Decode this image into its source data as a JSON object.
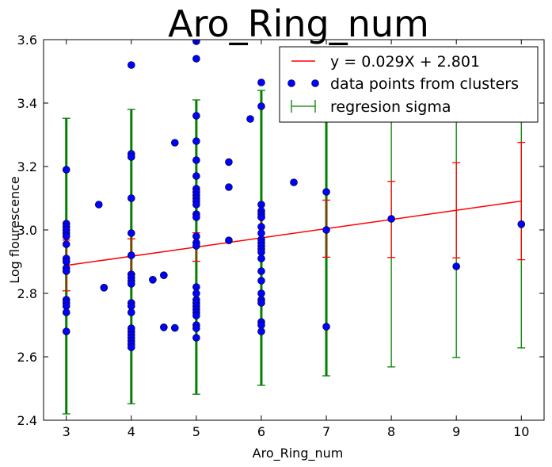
{
  "chart_data": {
    "type": "scatter",
    "title": "Aro_Ring_num",
    "xlabel": "Aro_Ring_num",
    "ylabel": "Log flourescence",
    "xlim": [
      2.65,
      10.35
    ],
    "ylim": [
      2.4,
      3.6
    ],
    "xticks": [
      "3",
      "4",
      "5",
      "6",
      "7",
      "8",
      "9",
      "10"
    ],
    "yticks": [
      "2.4",
      "2.6",
      "2.8",
      "3.0",
      "3.2",
      "3.4",
      "3.6"
    ],
    "grid": false,
    "legend_position": "top-right",
    "colors": {
      "line": "#ff0000",
      "points": "#0000ff",
      "sigma": "#008000"
    },
    "legend": [
      {
        "label": "y = 0.029X + 2.801",
        "kind": "line"
      },
      {
        "label": "data points from clusters",
        "kind": "points"
      },
      {
        "label": "regresion sigma",
        "kind": "errorbar"
      }
    ],
    "regression": {
      "slope": 0.029,
      "intercept": 2.801,
      "x_range": [
        3,
        10
      ]
    },
    "mean_error": [
      {
        "x": 3,
        "y": 2.888,
        "err": 0.08
      },
      {
        "x": 4,
        "y": 2.917,
        "err": 0.055
      },
      {
        "x": 5,
        "y": 2.946,
        "err": 0.045
      },
      {
        "x": 6,
        "y": 2.975,
        "err": 0.065
      },
      {
        "x": 7,
        "y": 3.004,
        "err": 0.09
      },
      {
        "x": 8,
        "y": 3.033,
        "err": 0.12
      },
      {
        "x": 9,
        "y": 3.062,
        "err": 0.15
      },
      {
        "x": 10,
        "y": 3.091,
        "err": 0.185
      }
    ],
    "sigma": [
      {
        "x": 3,
        "low": 2.42,
        "high": 3.352
      },
      {
        "x": 4,
        "low": 2.452,
        "high": 3.38
      },
      {
        "x": 5,
        "low": 2.482,
        "high": 3.41
      },
      {
        "x": 6,
        "low": 2.51,
        "high": 3.44
      },
      {
        "x": 7,
        "low": 2.54,
        "high": 3.47
      },
      {
        "x": 8,
        "low": 2.568,
        "high": 3.5
      },
      {
        "x": 9,
        "low": 2.598,
        "high": 3.53
      },
      {
        "x": 10,
        "low": 2.628,
        "high": 3.56
      }
    ],
    "points": [
      [
        3,
        3.19
      ],
      [
        3,
        3.02
      ],
      [
        3,
        3.01
      ],
      [
        3,
        3.0
      ],
      [
        3,
        2.99
      ],
      [
        3,
        2.98
      ],
      [
        3,
        2.955
      ],
      [
        3,
        2.91
      ],
      [
        3,
        2.9
      ],
      [
        3,
        2.88
      ],
      [
        3,
        2.87
      ],
      [
        3,
        2.78
      ],
      [
        3,
        2.77
      ],
      [
        3,
        2.76
      ],
      [
        3,
        2.74
      ],
      [
        3,
        2.68
      ],
      [
        3.5,
        3.08
      ],
      [
        3.58,
        2.818
      ],
      [
        4,
        3.52
      ],
      [
        4,
        3.24
      ],
      [
        4,
        3.23
      ],
      [
        4,
        3.1
      ],
      [
        4,
        2.99
      ],
      [
        4,
        2.92
      ],
      [
        4,
        2.86
      ],
      [
        4,
        2.85
      ],
      [
        4,
        2.84
      ],
      [
        4,
        2.83
      ],
      [
        4,
        2.77
      ],
      [
        4,
        2.76
      ],
      [
        4,
        2.74
      ],
      [
        4,
        2.69
      ],
      [
        4,
        2.68
      ],
      [
        4,
        2.67
      ],
      [
        4,
        2.66
      ],
      [
        4,
        2.65
      ],
      [
        4,
        2.64
      ],
      [
        4,
        2.63
      ],
      [
        4.33,
        2.843
      ],
      [
        4.5,
        2.857
      ],
      [
        4.5,
        2.693
      ],
      [
        4.67,
        3.275
      ],
      [
        4.67,
        2.691
      ],
      [
        5,
        3.595
      ],
      [
        5,
        3.54
      ],
      [
        5,
        3.36
      ],
      [
        5,
        3.28
      ],
      [
        5,
        3.22
      ],
      [
        5,
        3.17
      ],
      [
        5,
        3.13
      ],
      [
        5,
        3.12
      ],
      [
        5,
        3.11
      ],
      [
        5,
        3.1
      ],
      [
        5,
        3.09
      ],
      [
        5,
        3.08
      ],
      [
        5,
        3.05
      ],
      [
        5,
        3.04
      ],
      [
        5,
        2.98
      ],
      [
        5,
        2.96
      ],
      [
        5,
        2.95
      ],
      [
        5,
        2.82
      ],
      [
        5,
        2.8
      ],
      [
        5,
        2.78
      ],
      [
        5,
        2.77
      ],
      [
        5,
        2.76
      ],
      [
        5,
        2.75
      ],
      [
        5,
        2.74
      ],
      [
        5,
        2.73
      ],
      [
        5,
        2.7
      ],
      [
        5,
        2.69
      ],
      [
        5,
        2.66
      ],
      [
        5.5,
        3.214
      ],
      [
        5.5,
        3.135
      ],
      [
        5.5,
        2.967
      ],
      [
        5.83,
        3.35
      ],
      [
        6,
        3.465
      ],
      [
        6,
        3.39
      ],
      [
        6,
        3.08
      ],
      [
        6,
        3.06
      ],
      [
        6,
        3.05
      ],
      [
        6,
        3.04
      ],
      [
        6,
        3.01
      ],
      [
        6,
        2.99
      ],
      [
        6,
        2.97
      ],
      [
        6,
        2.96
      ],
      [
        6,
        2.95
      ],
      [
        6,
        2.94
      ],
      [
        6,
        2.93
      ],
      [
        6,
        2.91
      ],
      [
        6,
        2.87
      ],
      [
        6,
        2.84
      ],
      [
        6,
        2.8
      ],
      [
        6,
        2.78
      ],
      [
        6,
        2.77
      ],
      [
        6,
        2.71
      ],
      [
        6,
        2.7
      ],
      [
        6,
        2.68
      ],
      [
        6.5,
        3.15
      ],
      [
        7,
        3.12
      ],
      [
        7,
        3.0
      ],
      [
        7,
        2.695
      ],
      [
        8,
        3.035
      ],
      [
        9,
        2.885
      ],
      [
        10,
        3.018
      ]
    ]
  }
}
